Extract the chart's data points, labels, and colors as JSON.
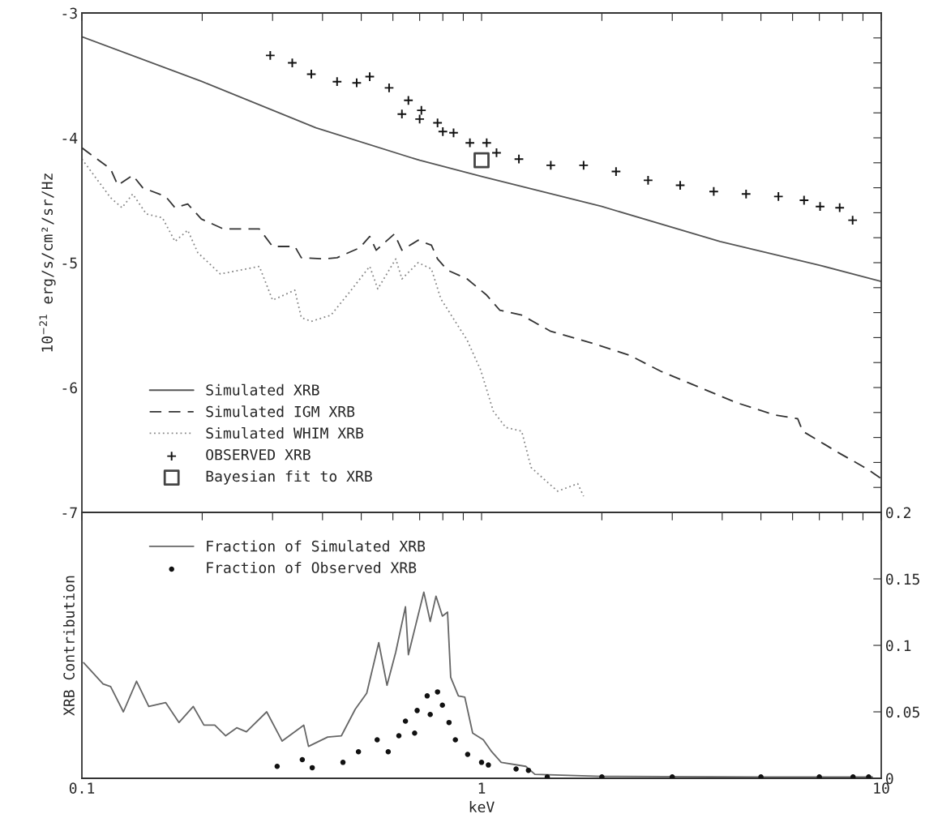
{
  "chart_data": [
    {
      "type": "line",
      "ylabel": "10$^{−21}$ erg/s/cm²/sr/Hz",
      "log": "x",
      "xlim": [
        0.1,
        10
      ],
      "ylim": [
        -7,
        -3
      ],
      "xticks": [
        0.1,
        {
          "value": 0.2,
          "label": null
        },
        {
          "value": 0.3,
          "label": null
        },
        {
          "value": 0.4,
          "label": null
        },
        {
          "value": 0.5,
          "label": null
        },
        {
          "value": 0.6,
          "label": null
        },
        {
          "value": 0.7,
          "label": null
        },
        {
          "value": 0.8,
          "label": null
        },
        {
          "value": 0.9,
          "label": null
        },
        1,
        {
          "value": 2,
          "label": null
        },
        {
          "value": 3,
          "label": null
        },
        {
          "value": 4,
          "label": null
        },
        {
          "value": 5,
          "label": null
        },
        {
          "value": 6,
          "label": null
        },
        {
          "value": 7,
          "label": null
        },
        {
          "value": 8,
          "label": null
        },
        {
          "value": 9,
          "label": null
        },
        10
      ],
      "yticks": [
        -7,
        {
          "value": -6.8,
          "label": null
        },
        {
          "value": -6.6,
          "label": null
        },
        {
          "value": -6.4,
          "label": null
        },
        {
          "value": -6.2,
          "label": null
        },
        -6,
        {
          "value": -5.8,
          "label": null
        },
        {
          "value": -5.6,
          "label": null
        },
        {
          "value": -5.4,
          "label": null
        },
        {
          "value": -5.2,
          "label": null
        },
        -5,
        {
          "value": -4.8,
          "label": null
        },
        {
          "value": -4.6,
          "label": null
        },
        {
          "value": -4.4,
          "label": null
        },
        {
          "value": -4.2,
          "label": null
        },
        -4,
        {
          "value": -3.8,
          "label": null
        },
        {
          "value": -3.6,
          "label": null
        },
        {
          "value": -3.4,
          "label": null
        },
        {
          "value": -3.2,
          "label": null
        },
        -3
      ],
      "tick_labels": "y",
      "grid": false,
      "legend": "bottom left",
      "series": [
        {
          "name": "Simulated XRB",
          "line_style": "solid",
          "color": "#555555",
          "x": [
            0.1,
            0.2,
            0.385,
            0.7,
            1,
            2,
            3.95,
            7,
            10
          ],
          "values": [
            -3.19,
            -3.55,
            -3.92,
            -4.18,
            -4.31,
            -4.55,
            -4.83,
            -5.02,
            -5.15
          ]
        },
        {
          "name": "Simulated IGM XRB",
          "line_style": "dashed",
          "color": "#333333",
          "x": [
            0.1,
            0.118,
            0.123,
            0.134,
            0.142,
            0.162,
            0.171,
            0.184,
            0.199,
            0.226,
            0.278,
            0.3,
            0.341,
            0.354,
            0.404,
            0.435,
            0.496,
            0.525,
            0.545,
            0.605,
            0.632,
            0.694,
            0.749,
            0.776,
            0.822,
            0.92,
            1.03,
            1.11,
            1.26,
            1.49,
            1.87,
            2.34,
            2.81,
            3.52,
            4.33,
            5.42,
            6.18,
            6.36,
            7.8,
            9.2,
            10
          ],
          "values": [
            -4.08,
            -4.25,
            -4.38,
            -4.3,
            -4.4,
            -4.47,
            -4.56,
            -4.53,
            -4.65,
            -4.73,
            -4.73,
            -4.87,
            -4.87,
            -4.96,
            -4.97,
            -4.96,
            -4.88,
            -4.79,
            -4.9,
            -4.77,
            -4.9,
            -4.82,
            -4.86,
            -4.97,
            -5.06,
            -5.13,
            -5.26,
            -5.38,
            -5.42,
            -5.55,
            -5.64,
            -5.74,
            -5.87,
            -6.0,
            -6.12,
            -6.22,
            -6.25,
            -6.35,
            -6.52,
            -6.65,
            -6.73
          ]
        },
        {
          "name": "Simulated WHIM XRB",
          "line_style": "dotted",
          "color": "#888888",
          "x": [
            0.1,
            0.118,
            0.126,
            0.134,
            0.145,
            0.159,
            0.171,
            0.184,
            0.195,
            0.222,
            0.278,
            0.3,
            0.341,
            0.354,
            0.375,
            0.42,
            0.469,
            0.525,
            0.55,
            0.61,
            0.632,
            0.694,
            0.749,
            0.791,
            0.851,
            0.92,
            0.995,
            1.07,
            1.15,
            1.26,
            1.33,
            1.44,
            1.55,
            1.74,
            1.8
          ],
          "values": [
            -4.17,
            -4.48,
            -4.56,
            -4.45,
            -4.61,
            -4.64,
            -4.83,
            -4.74,
            -4.92,
            -5.09,
            -5.03,
            -5.3,
            -5.22,
            -5.44,
            -5.47,
            -5.42,
            -5.23,
            -5.03,
            -5.21,
            -4.97,
            -5.13,
            -5.0,
            -5.05,
            -5.29,
            -5.45,
            -5.62,
            -5.86,
            -6.19,
            -6.32,
            -6.35,
            -6.64,
            -6.74,
            -6.83,
            -6.77,
            -6.87
          ]
        },
        {
          "name": "OBSERVED XRB",
          "type": "scatter",
          "marker": "cross",
          "color": "#111111",
          "x": [
            0.296,
            0.336,
            0.375,
            0.435,
            0.487,
            0.525,
            0.587,
            0.632,
            0.656,
            0.7,
            0.707,
            0.776,
            0.8,
            0.851,
            0.935,
            1.03,
            1.09,
            1.24,
            1.49,
            1.8,
            2.17,
            2.61,
            3.14,
            3.81,
            4.59,
            5.53,
            6.41,
            7.03,
            7.87,
            8.48
          ],
          "values": [
            -3.34,
            -3.4,
            -3.49,
            -3.55,
            -3.56,
            -3.51,
            -3.6,
            -3.81,
            -3.7,
            -3.85,
            -3.78,
            -3.88,
            -3.95,
            -3.96,
            -4.04,
            -4.04,
            -4.12,
            -4.17,
            -4.22,
            -4.22,
            -4.27,
            -4.34,
            -4.38,
            -4.43,
            -4.45,
            -4.47,
            -4.5,
            -4.55,
            -4.56,
            -4.66
          ]
        },
        {
          "name": "Bayesian fit to XRB",
          "type": "scatter",
          "marker": "square",
          "color": "#444444",
          "x": [
            1.0
          ],
          "values": [
            -4.18
          ]
        }
      ]
    },
    {
      "type": "line",
      "xlabel": "keV",
      "ylabel": "XRB Contribution",
      "log": "x",
      "xlim": [
        0.1,
        10
      ],
      "ylim": [
        0,
        0.2
      ],
      "xticks": [
        0.1,
        {
          "value": 0.2,
          "label": null
        },
        {
          "value": 0.3,
          "label": null
        },
        {
          "value": 0.4,
          "label": null
        },
        {
          "value": 0.5,
          "label": null
        },
        {
          "value": 0.6,
          "label": null
        },
        {
          "value": 0.7,
          "label": null
        },
        {
          "value": 0.8,
          "label": null
        },
        {
          "value": 0.9,
          "label": null
        },
        1,
        {
          "value": 2,
          "label": null
        },
        {
          "value": 3,
          "label": null
        },
        {
          "value": 4,
          "label": null
        },
        {
          "value": 5,
          "label": null
        },
        {
          "value": 6,
          "label": null
        },
        {
          "value": 7,
          "label": null
        },
        {
          "value": 8,
          "label": null
        },
        {
          "value": 9,
          "label": null
        },
        10
      ],
      "yticks": [
        0,
        0.05,
        0.1,
        0.15,
        0.2
      ],
      "grid": false,
      "legend": "top left",
      "series": [
        {
          "name": "Fraction of Simulated XRB",
          "line_style": "solid",
          "color": "#666666",
          "x": [
            0.101,
            0.113,
            0.118,
            0.127,
            0.137,
            0.147,
            0.162,
            0.175,
            0.19,
            0.202,
            0.215,
            0.229,
            0.244,
            0.258,
            0.29,
            0.317,
            0.359,
            0.369,
            0.412,
            0.446,
            0.483,
            0.516,
            0.553,
            0.58,
            0.61,
            0.645,
            0.656,
            0.717,
            0.744,
            0.769,
            0.798,
            0.822,
            0.837,
            0.875,
            0.908,
            0.95,
            1.01,
            1.06,
            1.12,
            1.29,
            1.36,
            2,
            5,
            9.5
          ],
          "values": [
            0.087,
            0.071,
            0.069,
            0.05,
            0.073,
            0.054,
            0.057,
            0.042,
            0.054,
            0.04,
            0.04,
            0.032,
            0.038,
            0.035,
            0.05,
            0.028,
            0.04,
            0.024,
            0.031,
            0.032,
            0.052,
            0.064,
            0.102,
            0.07,
            0.095,
            0.129,
            0.093,
            0.14,
            0.118,
            0.137,
            0.122,
            0.125,
            0.076,
            0.062,
            0.061,
            0.034,
            0.029,
            0.02,
            0.012,
            0.009,
            0.003,
            0.0015,
            0.001,
            0.001
          ]
        },
        {
          "name": "Fraction of Observed XRB",
          "type": "scatter",
          "marker": "circle",
          "color": "#111111",
          "x": [
            0.308,
            0.356,
            0.377,
            0.45,
            0.492,
            0.548,
            0.584,
            0.621,
            0.645,
            0.68,
            0.69,
            0.731,
            0.744,
            0.776,
            0.798,
            0.829,
            0.86,
            0.923,
            1.0,
            1.04,
            1.22,
            1.31,
            1.46,
            2,
            3,
            5,
            7,
            8.5,
            9.3
          ],
          "values": [
            0.009,
            0.014,
            0.008,
            0.012,
            0.02,
            0.029,
            0.02,
            0.032,
            0.043,
            0.034,
            0.051,
            0.062,
            0.048,
            0.065,
            0.055,
            0.042,
            0.029,
            0.018,
            0.012,
            0.01,
            0.007,
            0.006,
            0.001,
            0.001,
            0.001,
            0.001,
            0.001,
            0.001,
            0.001
          ]
        }
      ]
    }
  ]
}
